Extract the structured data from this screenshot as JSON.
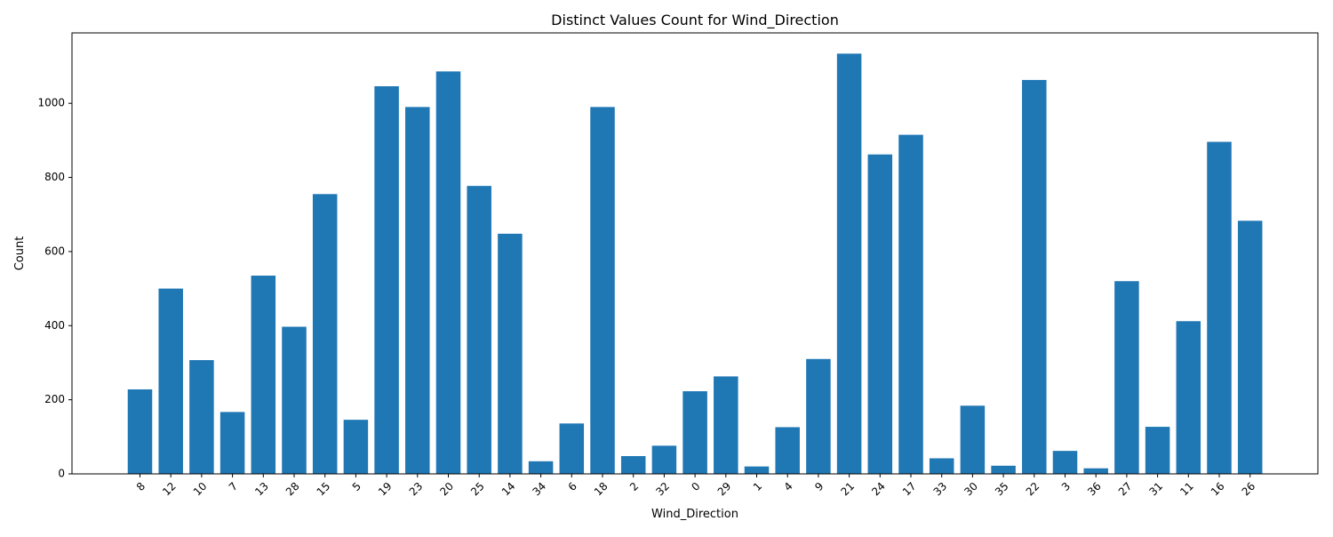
{
  "chart_data": {
    "type": "bar",
    "title": "Distinct Values Count for Wind_Direction",
    "xlabel": "Wind_Direction",
    "ylabel": "Count",
    "ylim": [
      0,
      1190
    ],
    "yticks": [
      0,
      200,
      400,
      600,
      800,
      1000
    ],
    "bar_color": "#1f77b4",
    "grid": false,
    "categories": [
      "8",
      "12",
      "10",
      "7",
      "13",
      "28",
      "15",
      "5",
      "19",
      "23",
      "20",
      "25",
      "14",
      "34",
      "6",
      "18",
      "2",
      "32",
      "0",
      "29",
      "1",
      "4",
      "9",
      "21",
      "24",
      "17",
      "33",
      "30",
      "35",
      "22",
      "3",
      "36",
      "27",
      "31",
      "11",
      "16",
      "26"
    ],
    "values": [
      228,
      500,
      307,
      167,
      535,
      397,
      755,
      146,
      1046,
      990,
      1086,
      777,
      648,
      34,
      136,
      990,
      48,
      76,
      223,
      263,
      20,
      126,
      310,
      1134,
      862,
      915,
      42,
      184,
      22,
      1063,
      62,
      15,
      520,
      127,
      412,
      896,
      683
    ]
  }
}
